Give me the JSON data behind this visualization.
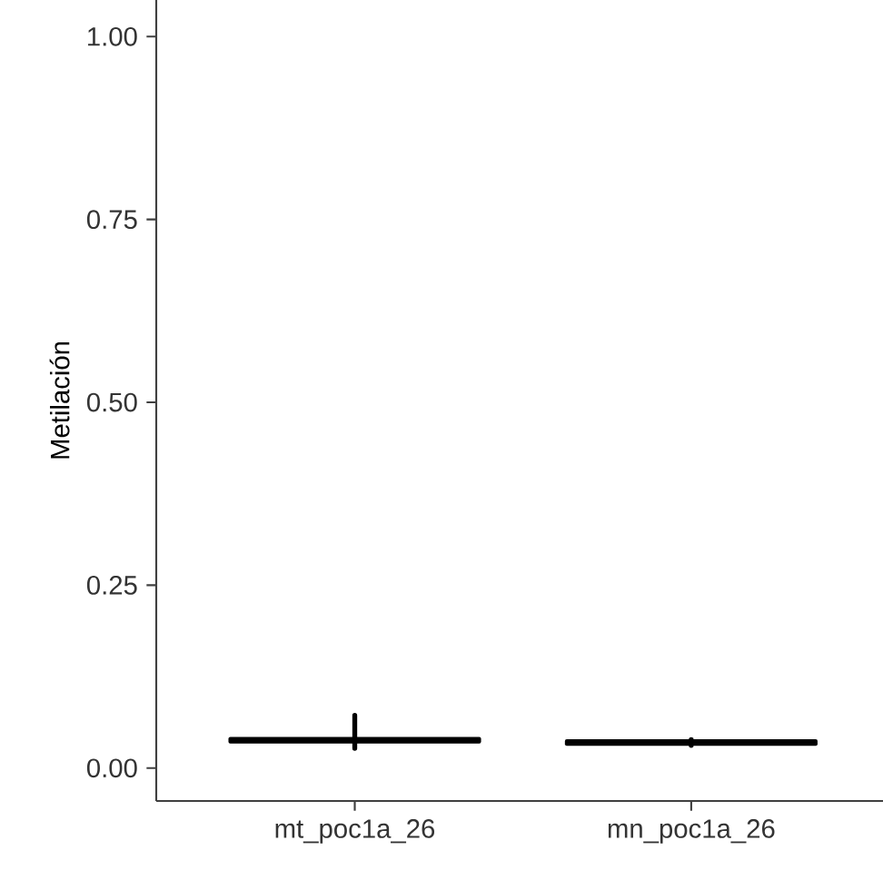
{
  "chart_data": {
    "type": "box",
    "ylabel": "Metilación",
    "categories": [
      "mt_poc1a_26",
      "mn_poc1a_26"
    ],
    "boxes": [
      {
        "low": 0.027,
        "q1": 0.036,
        "median": 0.038,
        "q3": 0.04,
        "high": 0.072
      },
      {
        "low": 0.031,
        "q1": 0.033,
        "median": 0.035,
        "q3": 0.037,
        "high": 0.039
      }
    ],
    "color": "#000000",
    "ylim": [
      -0.045,
      1.05
    ],
    "yticks": [
      {
        "value": 0,
        "label": "0.00"
      },
      {
        "value": 0.25,
        "label": "0.25"
      },
      {
        "value": 0.5,
        "label": "0.50"
      },
      {
        "value": 0.75,
        "label": "0.75"
      },
      {
        "value": 1,
        "label": "1.00"
      }
    ],
    "grid": false
  }
}
